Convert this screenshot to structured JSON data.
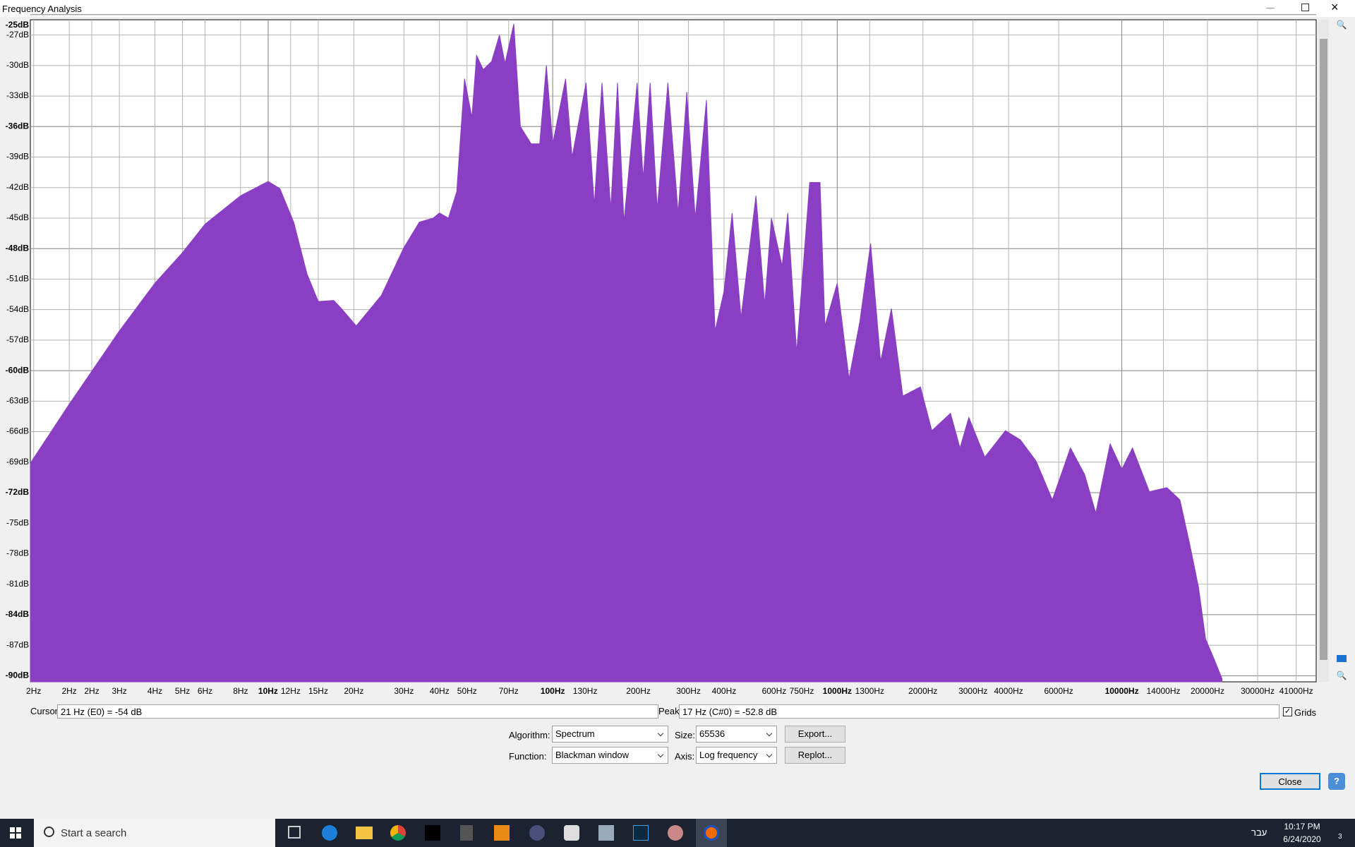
{
  "window": {
    "title": "Frequency Analysis"
  },
  "chart_data": {
    "type": "area",
    "color": "#8a3ec4",
    "xlog": true,
    "grid": true,
    "xlim": [
      1.46,
      48200
    ],
    "ylim": [
      -90.6,
      -25.5
    ],
    "xticks": [
      {
        "value": 1.5,
        "label": "2Hz"
      },
      {
        "value": 2,
        "label": "2Hz"
      },
      {
        "value": 2.4,
        "label": "2Hz"
      },
      {
        "value": 3,
        "label": "3Hz"
      },
      {
        "value": 4,
        "label": "4Hz"
      },
      {
        "value": 5,
        "label": "5Hz"
      },
      {
        "value": 6,
        "label": "6Hz"
      },
      {
        "value": 8,
        "label": "8Hz"
      },
      {
        "value": 10,
        "label": "10Hz"
      },
      {
        "value": 12,
        "label": "12Hz"
      },
      {
        "value": 15,
        "label": "15Hz"
      },
      {
        "value": 20,
        "label": "20Hz"
      },
      {
        "value": 30,
        "label": "30Hz"
      },
      {
        "value": 40,
        "label": "40Hz"
      },
      {
        "value": 50,
        "label": "50Hz"
      },
      {
        "value": 70,
        "label": "70Hz"
      },
      {
        "value": 100,
        "label": "100Hz"
      },
      {
        "value": 130,
        "label": "130Hz"
      },
      {
        "value": 200,
        "label": "200Hz"
      },
      {
        "value": 300,
        "label": "300Hz"
      },
      {
        "value": 400,
        "label": "400Hz"
      },
      {
        "value": 600,
        "label": "600Hz"
      },
      {
        "value": 750,
        "label": "750Hz"
      },
      {
        "value": 1000,
        "label": "1000Hz"
      },
      {
        "value": 1300,
        "label": "1300Hz"
      },
      {
        "value": 2000,
        "label": "2000Hz"
      },
      {
        "value": 3000,
        "label": "3000Hz"
      },
      {
        "value": 4000,
        "label": "4000Hz"
      },
      {
        "value": 6000,
        "label": "6000Hz"
      },
      {
        "value": 10000,
        "label": "10000Hz"
      },
      {
        "value": 14000,
        "label": "14000Hz"
      },
      {
        "value": 20000,
        "label": "20000Hz"
      },
      {
        "value": 30000,
        "label": "30000Hz"
      },
      {
        "value": 41000,
        "label": "41000Hz"
      }
    ],
    "yticks": [
      {
        "value": -25,
        "label": "-25dB"
      },
      {
        "value": -27,
        "label": "-27dB"
      },
      {
        "value": -30,
        "label": "-30dB"
      },
      {
        "value": -33,
        "label": "-33dB"
      },
      {
        "value": -36,
        "label": "-36dB"
      },
      {
        "value": -39,
        "label": "-39dB"
      },
      {
        "value": -42,
        "label": "-42dB"
      },
      {
        "value": -45,
        "label": "-45dB"
      },
      {
        "value": -48,
        "label": "-48dB"
      },
      {
        "value": -51,
        "label": "-51dB"
      },
      {
        "value": -54,
        "label": "-54dB"
      },
      {
        "value": -57,
        "label": "-57dB"
      },
      {
        "value": -60,
        "label": "-60dB"
      },
      {
        "value": -63,
        "label": "-63dB"
      },
      {
        "value": -66,
        "label": "-66dB"
      },
      {
        "value": -69,
        "label": "-69dB"
      },
      {
        "value": -72,
        "label": "-72dB"
      },
      {
        "value": -75,
        "label": "-75dB"
      },
      {
        "value": -78,
        "label": "-78dB"
      },
      {
        "value": -81,
        "label": "-81dB"
      },
      {
        "value": -84,
        "label": "-84dB"
      },
      {
        "value": -87,
        "label": "-87dB"
      },
      {
        "value": -90,
        "label": "-90dB"
      }
    ],
    "x": [
      1.46,
      2,
      3,
      4,
      5,
      6,
      8,
      10,
      11,
      12.3,
      13.7,
      15,
      17,
      18.1,
      20.4,
      25,
      30,
      34,
      38,
      40,
      43,
      46,
      49,
      52,
      54,
      57,
      61,
      65,
      68,
      73,
      77,
      84,
      90,
      95,
      100,
      111,
      117,
      131,
      140,
      149,
      160,
      169,
      178,
      198,
      208,
      220,
      233,
      254,
      276,
      296,
      317,
      347,
      372,
      400,
      427,
      459,
      518,
      556,
      587,
      640,
      670,
      720,
      800,
      870,
      905,
      1000,
      1100,
      1200,
      1310,
      1420,
      1550,
      1700,
      1960,
      2150,
      2500,
      2700,
      2900,
      3300,
      3900,
      4400,
      5000,
      5700,
      6600,
      7400,
      8100,
      9100,
      10000,
      10900,
      12500,
      14400,
      16000,
      17300,
      18600,
      19700,
      21200,
      22500
    ],
    "values": [
      -69.1,
      -63.3,
      -56.1,
      -51.4,
      -48.4,
      -45.6,
      -42.8,
      -41.4,
      -42.1,
      -45.4,
      -50.5,
      -53.2,
      -53.1,
      -53.9,
      -55.6,
      -52.6,
      -47.9,
      -45.4,
      -45,
      -44.5,
      -45,
      -42.4,
      -31.3,
      -35.1,
      -29,
      -30.4,
      -29.6,
      -27,
      -29.8,
      -25.9,
      -36,
      -37.7,
      -37.7,
      -30,
      -37.7,
      -31.3,
      -39,
      -31.7,
      -43.7,
      -31.7,
      -44.1,
      -31.7,
      -45.4,
      -31.7,
      -41.1,
      -31.7,
      -44.1,
      -31.7,
      -44.5,
      -32.6,
      -45,
      -33.4,
      -56.1,
      -52.2,
      -44.5,
      -54.8,
      -42.8,
      -53.5,
      -45,
      -49.7,
      -44.5,
      -58.2,
      -41.5,
      -41.5,
      -55.6,
      -51.4,
      -60.8,
      -55.2,
      -47.5,
      -59.1,
      -53.9,
      -62.5,
      -61.6,
      -65.9,
      -64.2,
      -67.6,
      -64.6,
      -68.5,
      -65.9,
      -66.8,
      -68.9,
      -72.7,
      -67.6,
      -70.2,
      -74,
      -67.2,
      -69.7,
      -67.6,
      -71.9,
      -71.5,
      -72.7,
      -77,
      -81.3,
      -86.4,
      -88.5,
      -90.3
    ]
  },
  "controls": {
    "cursor": {
      "label": "Cursor:",
      "value": "21 Hz (E0) = -54 dB"
    },
    "peak": {
      "label": "Peak:",
      "value": "17 Hz (C#0) = -52.8 dB"
    },
    "grids": "Grids",
    "algorithm": {
      "label": "Algorithm:",
      "value": "Spectrum"
    },
    "size": {
      "label": "Size:",
      "value": "65536"
    },
    "function": {
      "label": "Function:",
      "value": "Blackman window"
    },
    "axis": {
      "label": "Axis:",
      "value": "Log frequency"
    },
    "export": "Export...",
    "replot": "Replot...",
    "close": "Close",
    "help": "?"
  },
  "taskbar": {
    "search": "Start a search",
    "language": "עבר",
    "time": "10:17 PM",
    "date": "6/24/2020",
    "notifications": "3"
  }
}
